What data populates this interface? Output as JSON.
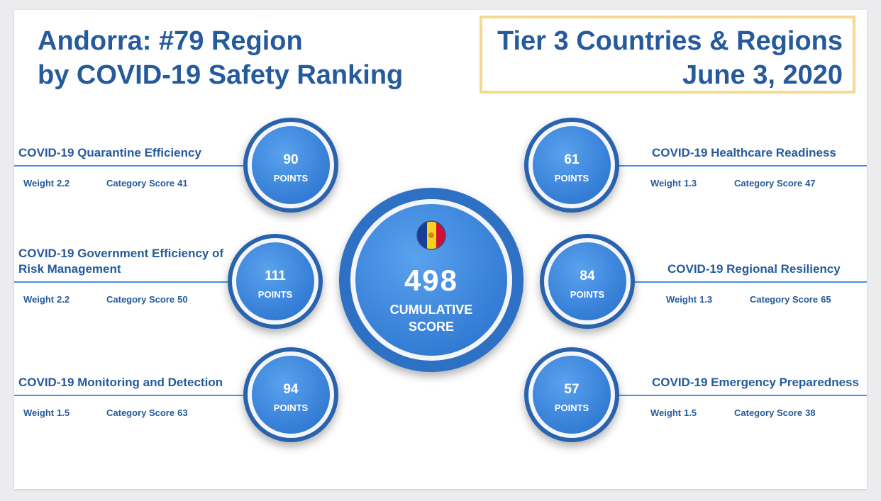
{
  "header": {
    "title_lines": [
      "Andorra: #79 Region",
      "by COVID-19 Safety Ranking"
    ],
    "tier_lines": [
      "Tier 3 Countries & Regions",
      "June 3, 2020"
    ]
  },
  "labels": {
    "points": "POINTS",
    "weight": "Weight",
    "category_score": "Category Score"
  },
  "cumulative": {
    "value": 498,
    "label": "CUMULATIVE SCORE"
  },
  "categories": [
    {
      "name": "COVID-19 Quarantine Efficiency",
      "points": 90,
      "weight": 2.2,
      "category_score": 41
    },
    {
      "name": "COVID-19 Government Efficiency of Risk Management",
      "points": 111,
      "weight": 2.2,
      "category_score": 50
    },
    {
      "name": "COVID-19 Monitoring and Detection",
      "points": 94,
      "weight": 1.5,
      "category_score": 63
    },
    {
      "name": "COVID-19 Healthcare Readiness",
      "points": 61,
      "weight": 1.3,
      "category_score": 47
    },
    {
      "name": "COVID-19 Regional Resiliency",
      "points": 84,
      "weight": 1.3,
      "category_score": 65
    },
    {
      "name": "COVID-19 Emergency Preparedness",
      "points": 57,
      "weight": 1.5,
      "category_score": 38
    }
  ]
}
